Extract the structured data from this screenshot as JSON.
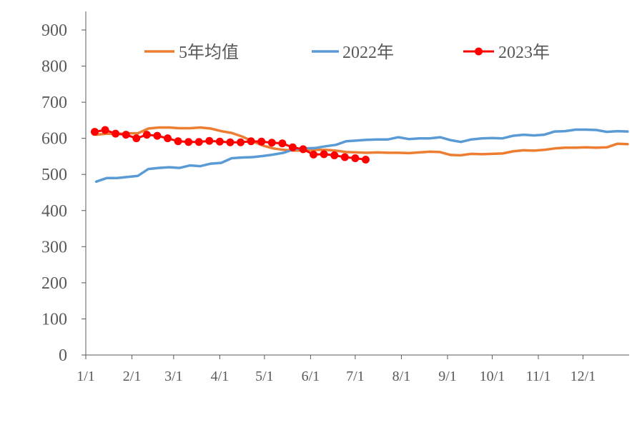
{
  "chart_data": {
    "type": "line",
    "ylim": [
      0,
      900
    ],
    "yticks": [
      0,
      100,
      200,
      300,
      400,
      500,
      600,
      700,
      800,
      900
    ],
    "xlim": [
      0,
      365
    ],
    "xticks": [
      {
        "label": "1/1",
        "day": 0
      },
      {
        "label": "2/1",
        "day": 31
      },
      {
        "label": "3/1",
        "day": 59
      },
      {
        "label": "4/1",
        "day": 90
      },
      {
        "label": "5/1",
        "day": 120
      },
      {
        "label": "6/1",
        "day": 151
      },
      {
        "label": "7/1",
        "day": 181
      },
      {
        "label": "8/1",
        "day": 212
      },
      {
        "label": "9/1",
        "day": 243
      },
      {
        "label": "10/1",
        "day": 273
      },
      {
        "label": "11/1",
        "day": 304
      },
      {
        "label": "12/1",
        "day": 334
      }
    ],
    "legend_position": "top",
    "grid": false,
    "series": [
      {
        "name": "5年均值",
        "color": "#ED7D31",
        "marker": false,
        "points": [
          [
            7,
            610
          ],
          [
            14,
            613
          ],
          [
            21,
            612
          ],
          [
            28,
            614
          ],
          [
            35,
            614
          ],
          [
            42,
            627
          ],
          [
            49,
            630
          ],
          [
            56,
            630
          ],
          [
            63,
            628
          ],
          [
            70,
            628
          ],
          [
            77,
            630
          ],
          [
            84,
            627
          ],
          [
            91,
            620
          ],
          [
            98,
            615
          ],
          [
            105,
            605
          ],
          [
            112,
            592
          ],
          [
            119,
            580
          ],
          [
            126,
            572
          ],
          [
            133,
            568
          ],
          [
            140,
            566
          ],
          [
            147,
            567
          ],
          [
            154,
            568
          ],
          [
            161,
            568
          ],
          [
            168,
            566
          ],
          [
            175,
            562
          ],
          [
            182,
            561
          ],
          [
            189,
            560
          ],
          [
            196,
            561
          ],
          [
            203,
            560
          ],
          [
            210,
            560
          ],
          [
            217,
            559
          ],
          [
            224,
            561
          ],
          [
            231,
            563
          ],
          [
            238,
            562
          ],
          [
            245,
            554
          ],
          [
            252,
            553
          ],
          [
            259,
            557
          ],
          [
            266,
            556
          ],
          [
            273,
            557
          ],
          [
            280,
            558
          ],
          [
            287,
            564
          ],
          [
            294,
            567
          ],
          [
            301,
            566
          ],
          [
            308,
            568
          ],
          [
            315,
            572
          ],
          [
            322,
            574
          ],
          [
            329,
            574
          ],
          [
            336,
            575
          ],
          [
            343,
            574
          ],
          [
            350,
            575
          ],
          [
            357,
            585
          ],
          [
            364,
            584
          ]
        ]
      },
      {
        "name": "2022年",
        "color": "#5B9BD5",
        "marker": false,
        "points": [
          [
            7,
            480
          ],
          [
            14,
            490
          ],
          [
            21,
            490
          ],
          [
            28,
            493
          ],
          [
            35,
            496
          ],
          [
            42,
            515
          ],
          [
            49,
            518
          ],
          [
            56,
            520
          ],
          [
            63,
            518
          ],
          [
            70,
            525
          ],
          [
            77,
            523
          ],
          [
            84,
            530
          ],
          [
            91,
            532
          ],
          [
            98,
            545
          ],
          [
            105,
            547
          ],
          [
            112,
            548
          ],
          [
            119,
            551
          ],
          [
            126,
            555
          ],
          [
            133,
            560
          ],
          [
            140,
            570
          ],
          [
            147,
            572
          ],
          [
            154,
            573
          ],
          [
            161,
            578
          ],
          [
            168,
            582
          ],
          [
            175,
            592
          ],
          [
            182,
            594
          ],
          [
            189,
            596
          ],
          [
            196,
            597
          ],
          [
            203,
            597
          ],
          [
            210,
            603
          ],
          [
            217,
            598
          ],
          [
            224,
            600
          ],
          [
            231,
            600
          ],
          [
            238,
            603
          ],
          [
            245,
            595
          ],
          [
            252,
            590
          ],
          [
            259,
            597
          ],
          [
            266,
            600
          ],
          [
            273,
            601
          ],
          [
            280,
            600
          ],
          [
            287,
            607
          ],
          [
            294,
            610
          ],
          [
            301,
            608
          ],
          [
            308,
            610
          ],
          [
            315,
            619
          ],
          [
            322,
            620
          ],
          [
            329,
            624
          ],
          [
            336,
            624
          ],
          [
            343,
            623
          ],
          [
            350,
            618
          ],
          [
            357,
            620
          ],
          [
            364,
            619
          ]
        ]
      },
      {
        "name": "2023年",
        "color": "#FF0000",
        "marker": true,
        "points": [
          [
            6,
            618
          ],
          [
            13,
            623
          ],
          [
            20,
            613
          ],
          [
            27,
            610
          ],
          [
            34,
            600
          ],
          [
            41,
            610
          ],
          [
            48,
            607
          ],
          [
            55,
            600
          ],
          [
            62,
            592
          ],
          [
            69,
            590
          ],
          [
            76,
            590
          ],
          [
            83,
            593
          ],
          [
            90,
            591
          ],
          [
            97,
            589
          ],
          [
            104,
            589
          ],
          [
            111,
            592
          ],
          [
            118,
            591
          ],
          [
            125,
            588
          ],
          [
            132,
            586
          ],
          [
            139,
            575
          ],
          [
            146,
            570
          ],
          [
            153,
            555
          ],
          [
            160,
            556
          ],
          [
            167,
            553
          ],
          [
            174,
            548
          ],
          [
            181,
            545
          ],
          [
            188,
            541
          ]
        ]
      }
    ]
  }
}
